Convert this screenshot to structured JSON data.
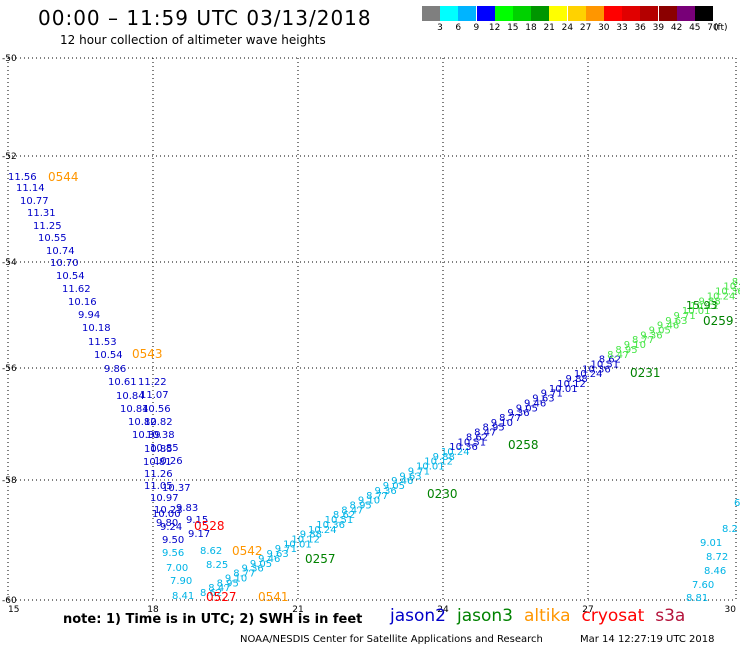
{
  "header": {
    "title": "00:00 – 11:59 UTC 03/13/2018",
    "subtitle": "12 hour collection of altimeter wave heights"
  },
  "legend": {
    "labels": [
      "3",
      "6",
      "9",
      "12",
      "15",
      "18",
      "21",
      "24",
      "27",
      "30",
      "33",
      "36",
      "39",
      "42",
      "45",
      "70"
    ],
    "unit": "(ft)",
    "colors": [
      "#7f7f7f",
      "#00ffff",
      "#00b4ff",
      "#0000ff",
      "#00ff00",
      "#00d200",
      "#009600",
      "#ffff00",
      "#ffd200",
      "#ff9600",
      "#ff0000",
      "#e10000",
      "#b40000",
      "#8b0000",
      "#780078",
      "#000000"
    ]
  },
  "axes": {
    "x_ticks": [
      "15",
      "18",
      "21",
      "24",
      "27",
      "30"
    ],
    "y_ticks": [
      "-50",
      "-52",
      "-54",
      "-56",
      "-58",
      "-60"
    ]
  },
  "track_colors": {
    "jason2": "#0000c8",
    "jason3": "#008200",
    "altika": "#ff9600",
    "cryosat": "#ff0000",
    "s3a": "#b4143c",
    "light_cyan": "#00b4e6",
    "light_green": "#46e646"
  },
  "tracks": {
    "track_a": [
      "11.56",
      "11.14",
      "10.77",
      "11.31",
      "11.25",
      "10.55",
      "10.74",
      "10.70",
      "10.54",
      "11.62",
      "10.16",
      "9.94",
      "10.18",
      "11.53",
      "10.54",
      "9.86",
      "10.61",
      "10.84",
      "10.84",
      "10.82",
      "10.39",
      "10.85",
      "10.81",
      "11.26",
      "11.05",
      "10.97",
      "10.23",
      "9.80",
      "10.00",
      "9.24",
      "9.50",
      "9.56",
      "7.00",
      "7.90",
      "8.41"
    ],
    "track_a_b": [
      "11.22",
      "11.07",
      "10.56",
      "10.82",
      "10.38",
      "10.85",
      "10.26",
      "10.37",
      "9.83",
      "9.15",
      "9.17",
      "8.62",
      "8.25"
    ],
    "track_right_text": [
      "9.01",
      "8.72",
      "8.46",
      "7.60",
      "8.81"
    ],
    "track_right_partial": [
      "6",
      "8.2"
    ]
  },
  "times": {
    "t0544": "0544",
    "t0543": "0543",
    "t0528": "0528",
    "t0542": "0542",
    "t0527": "0527",
    "t0541": "0541",
    "t0257": "0257",
    "t0230": "0230",
    "t0258": "0258",
    "t0231": "0231",
    "t0259": "0259",
    "label_1593": "15.93"
  },
  "footer": {
    "note": "note: 1) Time is in UTC; 2) SWH is in feet",
    "satellites": [
      {
        "name": "jason2",
        "color": "#0000c8"
      },
      {
        "name": "jason3",
        "color": "#008200"
      },
      {
        "name": "altika",
        "color": "#ff9600"
      },
      {
        "name": "cryosat",
        "color": "#ff0000"
      },
      {
        "name": "s3a",
        "color": "#b4143c"
      }
    ],
    "credit": "NOAA/NESDIS Center for Satellite Applications and Research",
    "timestamp": "Mar 14 12:27:19 UTC 2018"
  }
}
